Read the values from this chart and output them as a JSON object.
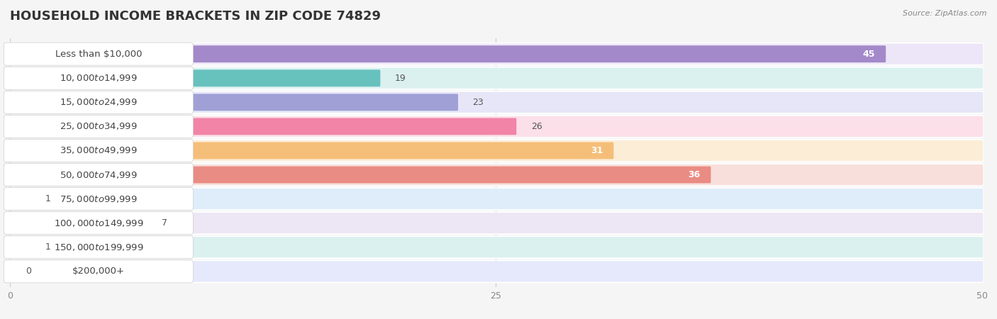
{
  "title": "HOUSEHOLD INCOME BRACKETS IN ZIP CODE 74829",
  "source": "Source: ZipAtlas.com",
  "categories": [
    "Less than $10,000",
    "$10,000 to $14,999",
    "$15,000 to $24,999",
    "$25,000 to $34,999",
    "$35,000 to $49,999",
    "$50,000 to $74,999",
    "$75,000 to $99,999",
    "$100,000 to $149,999",
    "$150,000 to $199,999",
    "$200,000+"
  ],
  "values": [
    45,
    19,
    23,
    26,
    31,
    36,
    1,
    7,
    1,
    0
  ],
  "bar_colors": [
    "#9b7fc4",
    "#5bbcb8",
    "#9999d4",
    "#f07aa0",
    "#f5b96e",
    "#e8837a",
    "#7ab8e8",
    "#b89fd4",
    "#5bbcb8",
    "#aab4e8"
  ],
  "bg_bar_colors": [
    "#d8c8f0",
    "#b0e0de",
    "#c8c8f0",
    "#f8b8d0",
    "#fad8a8",
    "#f0b8b0",
    "#b8d8f8",
    "#d8c8e8",
    "#b0e0de",
    "#c8cef8"
  ],
  "xlim": [
    0,
    50
  ],
  "xticks": [
    0,
    25,
    50
  ],
  "background_color": "#f5f5f5",
  "title_fontsize": 13,
  "label_fontsize": 9.5,
  "value_fontsize": 9
}
